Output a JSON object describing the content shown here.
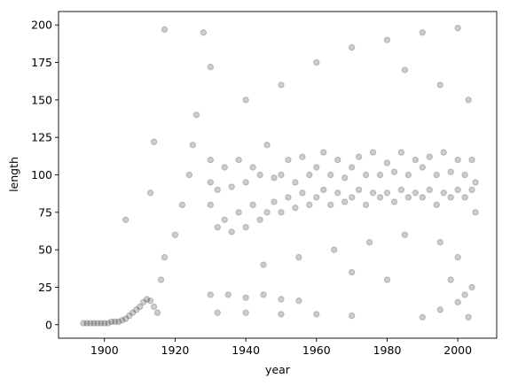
{
  "chart_data": {
    "type": "scatter",
    "title": "",
    "xlabel": "year",
    "ylabel": "length",
    "xlim": [
      1887,
      2011
    ],
    "ylim": [
      -9,
      209
    ],
    "xticks": [
      1900,
      1920,
      1940,
      1960,
      1980,
      2000
    ],
    "yticks": [
      0,
      25,
      50,
      75,
      100,
      125,
      150,
      175,
      200
    ],
    "grid": false,
    "legend": "none",
    "marker_color": "#000000",
    "marker_alpha": 0.1,
    "series": [
      {
        "points": [
          [
            1894,
            1
          ],
          [
            1895,
            1
          ],
          [
            1896,
            1
          ],
          [
            1897,
            1
          ],
          [
            1898,
            1
          ],
          [
            1899,
            1
          ],
          [
            1900,
            1
          ],
          [
            1901,
            1
          ],
          [
            1902,
            2
          ],
          [
            1903,
            2
          ],
          [
            1904,
            2
          ],
          [
            1905,
            3
          ],
          [
            1906,
            4
          ],
          [
            1907,
            6
          ],
          [
            1908,
            8
          ],
          [
            1909,
            10
          ],
          [
            1910,
            12
          ],
          [
            1911,
            15
          ],
          [
            1912,
            17
          ],
          [
            1913,
            16
          ],
          [
            1914,
            12
          ],
          [
            1915,
            8
          ],
          [
            1916,
            30
          ],
          [
            1917,
            45
          ],
          [
            1906,
            70
          ],
          [
            1913,
            88
          ],
          [
            1914,
            122
          ],
          [
            1917,
            197
          ],
          [
            1920,
            60
          ],
          [
            1922,
            80
          ],
          [
            1924,
            100
          ],
          [
            1925,
            120
          ],
          [
            1926,
            140
          ],
          [
            1928,
            195
          ],
          [
            1930,
            172
          ],
          [
            1930,
            80
          ],
          [
            1930,
            95
          ],
          [
            1930,
            110
          ],
          [
            1932,
            65
          ],
          [
            1932,
            90
          ],
          [
            1934,
            70
          ],
          [
            1934,
            105
          ],
          [
            1936,
            62
          ],
          [
            1936,
            92
          ],
          [
            1938,
            75
          ],
          [
            1938,
            110
          ],
          [
            1940,
            65
          ],
          [
            1940,
            95
          ],
          [
            1942,
            80
          ],
          [
            1942,
            105
          ],
          [
            1944,
            70
          ],
          [
            1944,
            100
          ],
          [
            1946,
            75
          ],
          [
            1946,
            120
          ],
          [
            1948,
            82
          ],
          [
            1948,
            98
          ],
          [
            1950,
            75
          ],
          [
            1950,
            100
          ],
          [
            1952,
            85
          ],
          [
            1952,
            110
          ],
          [
            1954,
            78
          ],
          [
            1954,
            95
          ],
          [
            1956,
            88
          ],
          [
            1956,
            112
          ],
          [
            1958,
            80
          ],
          [
            1958,
            100
          ],
          [
            1960,
            85
          ],
          [
            1960,
            105
          ],
          [
            1962,
            90
          ],
          [
            1962,
            115
          ],
          [
            1964,
            80
          ],
          [
            1964,
            100
          ],
          [
            1966,
            88
          ],
          [
            1966,
            110
          ],
          [
            1968,
            82
          ],
          [
            1968,
            98
          ],
          [
            1970,
            85
          ],
          [
            1970,
            105
          ],
          [
            1972,
            90
          ],
          [
            1972,
            112
          ],
          [
            1974,
            80
          ],
          [
            1974,
            100
          ],
          [
            1976,
            88
          ],
          [
            1976,
            115
          ],
          [
            1978,
            85
          ],
          [
            1978,
            100
          ],
          [
            1980,
            88
          ],
          [
            1980,
            108
          ],
          [
            1982,
            82
          ],
          [
            1982,
            102
          ],
          [
            1984,
            90
          ],
          [
            1984,
            115
          ],
          [
            1986,
            85
          ],
          [
            1986,
            100
          ],
          [
            1988,
            88
          ],
          [
            1988,
            110
          ],
          [
            1990,
            85
          ],
          [
            1990,
            105
          ],
          [
            1992,
            90
          ],
          [
            1992,
            112
          ],
          [
            1994,
            80
          ],
          [
            1994,
            100
          ],
          [
            1996,
            88
          ],
          [
            1996,
            115
          ],
          [
            1998,
            85
          ],
          [
            1998,
            102
          ],
          [
            2000,
            90
          ],
          [
            2000,
            110
          ],
          [
            2002,
            85
          ],
          [
            2002,
            100
          ],
          [
            2004,
            90
          ],
          [
            2004,
            110
          ],
          [
            2005,
            95
          ],
          [
            2005,
            75
          ],
          [
            1930,
            20
          ],
          [
            1935,
            20
          ],
          [
            1940,
            18
          ],
          [
            1945,
            20
          ],
          [
            1950,
            17
          ],
          [
            1955,
            16
          ],
          [
            1932,
            8
          ],
          [
            1940,
            8
          ],
          [
            1950,
            7
          ],
          [
            1960,
            7
          ],
          [
            1970,
            6
          ],
          [
            1990,
            5
          ],
          [
            1995,
            10
          ],
          [
            2000,
            15
          ],
          [
            2002,
            20
          ],
          [
            2004,
            25
          ],
          [
            1998,
            30
          ],
          [
            2003,
            5
          ],
          [
            1940,
            150
          ],
          [
            1950,
            160
          ],
          [
            1960,
            175
          ],
          [
            1970,
            185
          ],
          [
            1980,
            190
          ],
          [
            1990,
            195
          ],
          [
            2000,
            198
          ],
          [
            1985,
            170
          ],
          [
            1995,
            160
          ],
          [
            2003,
            150
          ],
          [
            1945,
            40
          ],
          [
            1955,
            45
          ],
          [
            1965,
            50
          ],
          [
            1975,
            55
          ],
          [
            1985,
            60
          ],
          [
            1995,
            55
          ],
          [
            2000,
            45
          ],
          [
            1980,
            30
          ],
          [
            1970,
            35
          ]
        ]
      }
    ]
  }
}
